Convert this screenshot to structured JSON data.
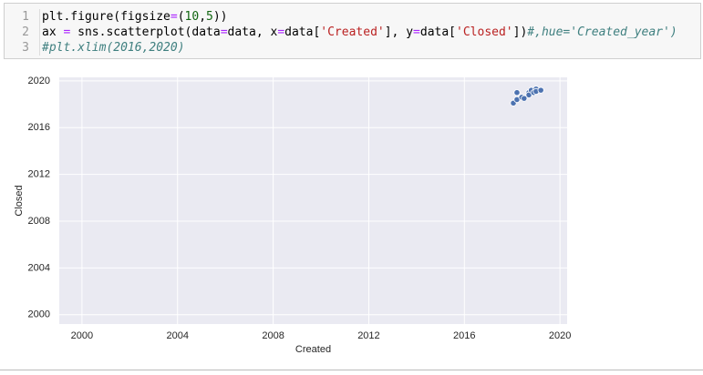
{
  "code": {
    "line_numbers": [
      1,
      2,
      3
    ],
    "lines": [
      [
        {
          "text": "plt.figure(figsize",
          "color": "#000000"
        },
        {
          "text": "=",
          "color": "#aa22ff"
        },
        {
          "text": "(",
          "color": "#000000"
        },
        {
          "text": "10",
          "color": "#116611"
        },
        {
          "text": ",",
          "color": "#000000"
        },
        {
          "text": "5",
          "color": "#116611"
        },
        {
          "text": "))",
          "color": "#000000"
        }
      ],
      [
        {
          "text": "ax ",
          "color": "#000000"
        },
        {
          "text": "=",
          "color": "#aa22ff"
        },
        {
          "text": " sns.scatterplot(data",
          "color": "#000000"
        },
        {
          "text": "=",
          "color": "#aa22ff"
        },
        {
          "text": "data, x",
          "color": "#000000"
        },
        {
          "text": "=",
          "color": "#aa22ff"
        },
        {
          "text": "data[",
          "color": "#000000"
        },
        {
          "text": "'Created'",
          "color": "#ba2121"
        },
        {
          "text": "], y",
          "color": "#000000"
        },
        {
          "text": "=",
          "color": "#aa22ff"
        },
        {
          "text": "data[",
          "color": "#000000"
        },
        {
          "text": "'Closed'",
          "color": "#ba2121"
        },
        {
          "text": "])",
          "color": "#000000"
        },
        {
          "text": "#,hue='Created_year')",
          "color": "#408080",
          "italic": true
        }
      ],
      [
        {
          "text": "#plt.xlim(2016,2020)",
          "color": "#408080",
          "italic": true
        }
      ]
    ]
  },
  "chart_data": {
    "type": "scatter",
    "xlabel": "Created",
    "ylabel": "Closed",
    "x": [
      2018.05,
      2018.2,
      2018.2,
      2018.4,
      2018.5,
      2018.7,
      2018.7,
      2018.8,
      2018.9,
      2019.0,
      2019.0,
      2019.2
    ],
    "values": [
      2018.1,
      2018.4,
      2019.0,
      2018.6,
      2018.5,
      2019.0,
      2018.8,
      2019.2,
      2019.0,
      2019.3,
      2019.1,
      2019.2
    ],
    "color": "#4c72b0",
    "xlim": [
      1999.05,
      2020.3
    ],
    "ylim": [
      1999.2,
      2020.3
    ],
    "xticks": [
      2000,
      2004,
      2008,
      2012,
      2016,
      2020
    ],
    "yticks": [
      2000,
      2004,
      2008,
      2012,
      2016,
      2020
    ],
    "grid": true
  }
}
